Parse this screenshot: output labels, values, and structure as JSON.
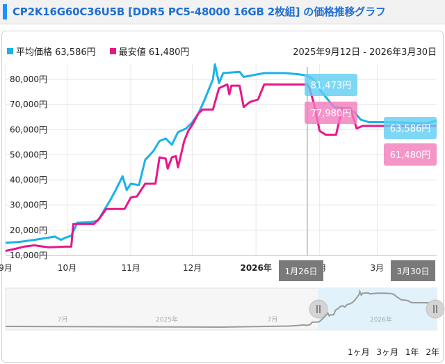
{
  "title": "CP2K16G60C36U5B [DDR5 PC5-48000 16GB 2枚組] の価格推移グラフ",
  "legend": {
    "avg_label": "平均価格 63,586円",
    "min_label": "最安値 61,480円"
  },
  "date_range": "2025年9月12日 - 2026年3月30日",
  "range_buttons": [
    "1ヶ月",
    "3ヶ月",
    "1年",
    "2年"
  ],
  "colors": {
    "avg": "#1ab2ea",
    "min": "#e8168c",
    "accent": "#1e90ff"
  },
  "tooltips": {
    "avg_at_cursor": "81,473円",
    "min_at_cursor": "77,980円",
    "avg_end": "63,586円",
    "min_end": "61,480円"
  },
  "crosshair_date_label": "1月26日",
  "end_date_label": "3月30日",
  "navigator": {
    "labels": [
      "7月",
      "2025年",
      "7月",
      "2026年"
    ]
  },
  "chart_data": {
    "type": "line",
    "ylim": [
      10000,
      85000
    ],
    "y_ticks": [
      10000,
      20000,
      30000,
      40000,
      50000,
      60000,
      70000,
      80000
    ],
    "y_tick_labels": [
      "10,000円",
      "20,000円",
      "30,000円",
      "40,000円",
      "50,000円",
      "60,000円",
      "70,000円",
      "80,000円"
    ],
    "x_tick_labels": [
      "9月",
      "10月",
      "11月",
      "12月",
      "2026年",
      "2月",
      "3月"
    ],
    "x_tick_dates": [
      "2025-09-01",
      "2025-10-01",
      "2025-11-01",
      "2025-12-01",
      "2026-01-01",
      "2026-02-01",
      "2026-03-01"
    ],
    "series": [
      {
        "name": "平均価格",
        "points": [
          [
            "2025-09-01",
            15000
          ],
          [
            "2025-09-08",
            15400
          ],
          [
            "2025-09-15",
            16200
          ],
          [
            "2025-09-20",
            16800
          ],
          [
            "2025-09-25",
            17500
          ],
          [
            "2025-09-28",
            16200
          ],
          [
            "2025-09-30",
            17000
          ],
          [
            "2025-10-03",
            17800
          ],
          [
            "2025-10-06",
            23000
          ],
          [
            "2025-10-12",
            23200
          ],
          [
            "2025-10-16",
            23800
          ],
          [
            "2025-10-19",
            28000
          ],
          [
            "2025-10-22",
            32000
          ],
          [
            "2025-10-25",
            36500
          ],
          [
            "2025-10-28",
            41500
          ],
          [
            "2025-10-30",
            36000
          ],
          [
            "2025-11-01",
            38500
          ],
          [
            "2025-11-05",
            38000
          ],
          [
            "2025-11-08",
            48000
          ],
          [
            "2025-11-12",
            51500
          ],
          [
            "2025-11-15",
            55500
          ],
          [
            "2025-11-18",
            56500
          ],
          [
            "2025-11-21",
            54000
          ],
          [
            "2025-11-24",
            59000
          ],
          [
            "2025-11-28",
            60500
          ],
          [
            "2025-12-01",
            63000
          ],
          [
            "2025-12-04",
            66500
          ],
          [
            "2025-12-07",
            72000
          ],
          [
            "2025-12-09",
            76000
          ],
          [
            "2025-12-11",
            80000
          ],
          [
            "2025-12-12",
            86000
          ],
          [
            "2025-12-14",
            78500
          ],
          [
            "2025-12-16",
            82500
          ],
          [
            "2025-12-24",
            83000
          ],
          [
            "2025-12-26",
            81000
          ],
          [
            "2026-01-05",
            82500
          ],
          [
            "2026-01-15",
            82500
          ],
          [
            "2026-01-22",
            82000
          ],
          [
            "2026-01-26",
            81473
          ],
          [
            "2026-01-29",
            80000
          ],
          [
            "2026-02-01",
            76000
          ],
          [
            "2026-02-05",
            72000
          ],
          [
            "2026-02-08",
            69000
          ],
          [
            "2026-02-13",
            68500
          ],
          [
            "2026-02-18",
            67000
          ],
          [
            "2026-02-21",
            64000
          ],
          [
            "2026-02-25",
            63000
          ],
          [
            "2026-03-05",
            63000
          ],
          [
            "2026-03-15",
            62800
          ],
          [
            "2026-03-25",
            62500
          ],
          [
            "2026-03-30",
            63586
          ]
        ]
      },
      {
        "name": "最安値",
        "points": [
          [
            "2025-09-01",
            11800
          ],
          [
            "2025-09-05",
            12500
          ],
          [
            "2025-09-10",
            13500
          ],
          [
            "2025-09-15",
            14000
          ],
          [
            "2025-09-22",
            13200
          ],
          [
            "2025-09-30",
            13500
          ],
          [
            "2025-10-03",
            13500
          ],
          [
            "2025-10-04",
            22500
          ],
          [
            "2025-10-14",
            22500
          ],
          [
            "2025-10-17",
            25000
          ],
          [
            "2025-10-20",
            28500
          ],
          [
            "2025-10-29",
            28500
          ],
          [
            "2025-11-01",
            33000
          ],
          [
            "2025-11-04",
            33500
          ],
          [
            "2025-11-08",
            38500
          ],
          [
            "2025-11-13",
            38500
          ],
          [
            "2025-11-15",
            49000
          ],
          [
            "2025-11-18",
            48500
          ],
          [
            "2025-11-19",
            44500
          ],
          [
            "2025-11-21",
            49000
          ],
          [
            "2025-11-23",
            49500
          ],
          [
            "2025-11-24",
            45000
          ],
          [
            "2025-11-27",
            55500
          ],
          [
            "2025-11-29",
            59500
          ],
          [
            "2025-12-01",
            62000
          ],
          [
            "2025-12-04",
            66500
          ],
          [
            "2025-12-06",
            68000
          ],
          [
            "2025-12-11",
            68000
          ],
          [
            "2025-12-14",
            76500
          ],
          [
            "2025-12-18",
            78000
          ],
          [
            "2025-12-19",
            74000
          ],
          [
            "2025-12-20",
            77500
          ],
          [
            "2025-12-24",
            77500
          ],
          [
            "2025-12-26",
            69000
          ],
          [
            "2025-12-29",
            71000
          ],
          [
            "2026-01-02",
            72000
          ],
          [
            "2026-01-05",
            78000
          ],
          [
            "2026-01-26",
            77980
          ],
          [
            "2026-01-27",
            76500
          ],
          [
            "2026-01-29",
            71000
          ],
          [
            "2026-02-01",
            59500
          ],
          [
            "2026-02-04",
            58000
          ],
          [
            "2026-02-09",
            58000
          ],
          [
            "2026-02-12",
            68500
          ],
          [
            "2026-02-16",
            68500
          ],
          [
            "2026-02-19",
            60500
          ],
          [
            "2026-02-22",
            61500
          ],
          [
            "2026-03-10",
            61500
          ],
          [
            "2026-03-20",
            61480
          ],
          [
            "2026-03-30",
            61480
          ]
        ]
      }
    ],
    "crosshair_date": "2026-01-26",
    "grid": true,
    "legend_position": "top-left"
  }
}
